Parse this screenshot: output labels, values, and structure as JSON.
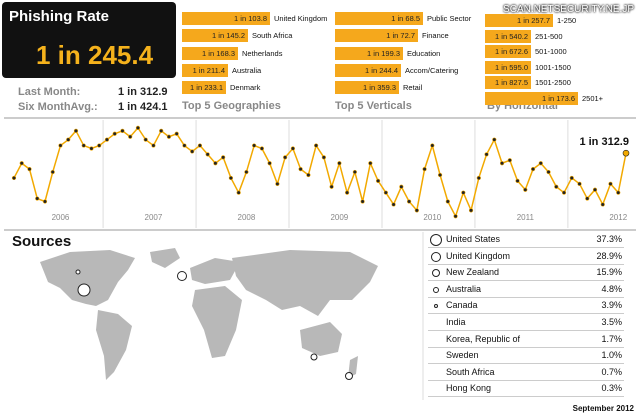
{
  "header": {
    "title": "Phishing Rate",
    "rate": "1 in 245.4",
    "watermark": "SCAN.NETSECURITY.NE.JP",
    "last_month_label": "Last Month:",
    "last_month_value": "1 in 312.9",
    "six_month_label": "Six MonthAvg.:",
    "six_month_value": "1 in 424.1"
  },
  "geographies": {
    "title": "Top 5 Geographies",
    "rows": [
      {
        "value": "1 in 103.8",
        "name": "United Kingdom"
      },
      {
        "value": "1 in 145.2",
        "name": "South Africa"
      },
      {
        "value": "1 in 168.3",
        "name": "Netherlands"
      },
      {
        "value": "1 in 211.4",
        "name": "Australia"
      },
      {
        "value": "1 in 233.1",
        "name": "Denmark"
      }
    ]
  },
  "verticals": {
    "title": "Top 5 Verticals",
    "rows": [
      {
        "value": "1 in 68.5",
        "name": "Public Sector"
      },
      {
        "value": "1 in 72.7",
        "name": "Finance"
      },
      {
        "value": "1 in 199.3",
        "name": "Education"
      },
      {
        "value": "1 in 244.4",
        "name": "Accom/Catering"
      },
      {
        "value": "1 in 359.3",
        "name": "Retail"
      }
    ]
  },
  "horizontal": {
    "title": "By Horizontal",
    "rows": [
      {
        "value": "1 in 257.7",
        "name": "1-250"
      },
      {
        "value": "1 in 540.2",
        "name": "251-500"
      },
      {
        "value": "1 in 672.6",
        "name": "501-1000"
      },
      {
        "value": "1 in 595.0",
        "name": "1001-1500"
      },
      {
        "value": "1 in 827.5",
        "name": "1501-2500"
      },
      {
        "value": "1 in 173.6",
        "name": "2501+"
      }
    ]
  },
  "chart_data": {
    "type": "line",
    "color": "#f2a900",
    "categories": [
      null,
      null,
      null,
      null,
      null,
      null,
      null,
      null,
      null,
      null,
      null,
      null,
      null,
      null,
      null,
      null,
      null,
      null,
      null,
      null,
      null,
      null,
      null,
      null,
      null,
      null,
      null,
      null,
      null,
      null,
      null,
      null,
      null,
      null,
      null,
      null,
      null,
      null,
      null,
      null,
      null,
      null,
      null,
      null,
      null,
      null,
      null,
      null,
      null,
      null,
      null,
      null,
      null,
      null,
      null,
      null,
      null,
      null,
      null,
      null,
      null,
      null,
      null,
      null,
      null,
      null,
      null,
      null,
      null,
      null,
      null,
      null,
      null,
      null,
      null,
      null,
      null,
      null,
      null,
      null
    ],
    "x_labels": [
      "2006",
      "2007",
      "2008",
      "2009",
      "2010",
      "2011",
      "2012"
    ],
    "ylim": [
      440,
      260
    ],
    "values": [
      355,
      330,
      340,
      390,
      395,
      345,
      300,
      290,
      275,
      300,
      305,
      300,
      290,
      280,
      275,
      285,
      270,
      290,
      300,
      275,
      285,
      280,
      300,
      310,
      300,
      315,
      330,
      320,
      355,
      380,
      345,
      300,
      305,
      330,
      365,
      320,
      305,
      340,
      350,
      300,
      320,
      370,
      330,
      380,
      345,
      395,
      330,
      360,
      380,
      400,
      370,
      395,
      410,
      340,
      300,
      350,
      395,
      420,
      380,
      410,
      355,
      315,
      290,
      330,
      325,
      360,
      375,
      340,
      330,
      345,
      370,
      380,
      355,
      365,
      390,
      375,
      400,
      365,
      380,
      312.9
    ],
    "value_labels": [
      null,
      null,
      null,
      null,
      null,
      null,
      null,
      null,
      null,
      null,
      null,
      null,
      null,
      null,
      null,
      null,
      null,
      null,
      null,
      null,
      null,
      null,
      null,
      null,
      null,
      null,
      null,
      null,
      null,
      null,
      null,
      null,
      null,
      null,
      null,
      null,
      null,
      null,
      null,
      null,
      null,
      null,
      null,
      null,
      null,
      null,
      null,
      null,
      null,
      null,
      null,
      null,
      null,
      null,
      null,
      null,
      null,
      null,
      null,
      null,
      null,
      null,
      null,
      null,
      null,
      null,
      null,
      null,
      null,
      null,
      null,
      null,
      null,
      null,
      null,
      null,
      null,
      null,
      null,
      "1 in 312.9"
    ]
  },
  "sources": {
    "title": "Sources",
    "rows": [
      {
        "name": "United States",
        "share": "37.3%"
      },
      {
        "name": "United Kingdom",
        "share": "28.9%"
      },
      {
        "name": "New Zealand",
        "share": "15.9%"
      },
      {
        "name": "Australia",
        "share": "4.8%"
      },
      {
        "name": "Canada",
        "share": "3.9%"
      },
      {
        "name": "India",
        "share": "3.5%"
      },
      {
        "name": "Korea, Republic of",
        "share": "1.7%"
      },
      {
        "name": "Sweden",
        "share": "1.0%"
      },
      {
        "name": "South Africa",
        "share": "0.7%"
      },
      {
        "name": "Hong Kong",
        "share": "0.3%"
      }
    ]
  },
  "footer": "September 2012"
}
